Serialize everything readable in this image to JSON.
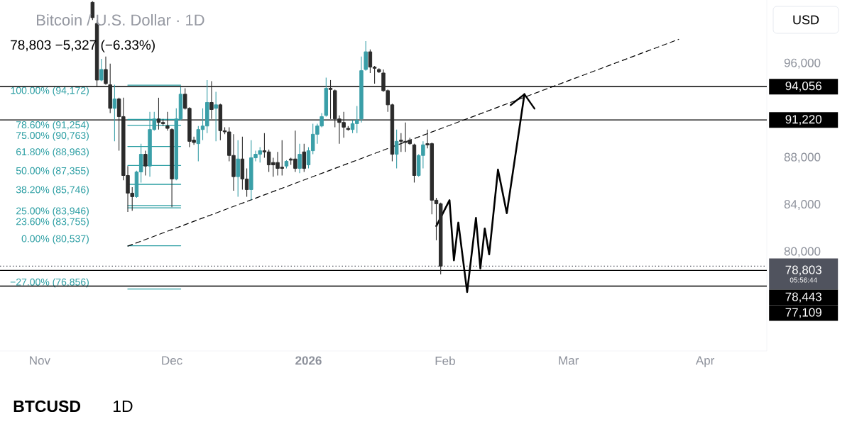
{
  "chart_data": {
    "type": "candlestick",
    "title": "Bitcoin / U.S. Dollar · 1D",
    "subtitle": "78,803 −5,327 (−6.33%)",
    "x": [
      "2025-11-13",
      "2025-11-14",
      "2025-11-15",
      "2025-11-16",
      "2025-11-17",
      "2025-11-18",
      "2025-11-19",
      "2025-11-20",
      "2025-11-21",
      "2025-11-22",
      "2025-11-23",
      "2025-11-24",
      "2025-11-25",
      "2025-11-26",
      "2025-11-27",
      "2025-11-28",
      "2025-11-29",
      "2025-11-30",
      "2025-12-01",
      "2025-12-02",
      "2025-12-03",
      "2025-12-04",
      "2025-12-05",
      "2025-12-06",
      "2025-12-07",
      "2025-12-08",
      "2025-12-09",
      "2025-12-10",
      "2025-12-11",
      "2025-12-12",
      "2025-12-13",
      "2025-12-14",
      "2025-12-15",
      "2025-12-16",
      "2025-12-17",
      "2025-12-18",
      "2025-12-19",
      "2025-12-20",
      "2025-12-21",
      "2025-12-22",
      "2025-12-23",
      "2025-12-24",
      "2025-12-25",
      "2025-12-26",
      "2025-12-27",
      "2025-12-28",
      "2025-12-29",
      "2025-12-30",
      "2025-12-31",
      "2026-01-01",
      "2026-01-02",
      "2026-01-03",
      "2026-01-04",
      "2026-01-05",
      "2026-01-06",
      "2026-01-07",
      "2026-01-08",
      "2026-01-09",
      "2026-01-10",
      "2026-01-11",
      "2026-01-12",
      "2026-01-13",
      "2026-01-14",
      "2026-01-15",
      "2026-01-16",
      "2026-01-17",
      "2026-01-18",
      "2026-01-19",
      "2026-01-20",
      "2026-01-21",
      "2026-01-22",
      "2026-01-23",
      "2026-01-24",
      "2026-01-25",
      "2026-01-26",
      "2026-01-27",
      "2026-01-28",
      "2026-01-29",
      "2026-01-30",
      "2026-01-31"
    ],
    "ohlc": [
      [
        101200,
        101300,
        99700,
        99900
      ],
      [
        99400,
        99700,
        94000,
        94600
      ],
      [
        94600,
        96400,
        94500,
        95500
      ],
      [
        95500,
        96600,
        94200,
        94300
      ],
      [
        94200,
        96000,
        91800,
        92200
      ],
      [
        92200,
        94200,
        89400,
        93000
      ],
      [
        93000,
        93100,
        88600,
        91500
      ],
      [
        91500,
        93100,
        86100,
        86500
      ],
      [
        86500,
        87300,
        83400,
        85000
      ],
      [
        85000,
        85500,
        83500,
        84700
      ],
      [
        84700,
        86900,
        84600,
        86800
      ],
      [
        86800,
        89200,
        85900,
        88300
      ],
      [
        88300,
        88600,
        86500,
        87300
      ],
      [
        87300,
        91900,
        86400,
        90400
      ],
      [
        90400,
        91900,
        90300,
        91300
      ],
      [
        91300,
        93100,
        90400,
        91000
      ],
      [
        91000,
        91300,
        90700,
        90900
      ],
      [
        90700,
        91900,
        90300,
        90500
      ],
      [
        90400,
        90500,
        83800,
        86200
      ],
      [
        86200,
        92200,
        86100,
        91300
      ],
      [
        91300,
        94000,
        91200,
        93400
      ],
      [
        93400,
        93900,
        92100,
        92200
      ],
      [
        92200,
        92300,
        88900,
        89400
      ],
      [
        89500,
        89800,
        89100,
        89300
      ],
      [
        89200,
        90700,
        87700,
        90400
      ],
      [
        90400,
        92200,
        89500,
        90700
      ],
      [
        90700,
        94600,
        90100,
        92700
      ],
      [
        92700,
        94500,
        91300,
        92100
      ],
      [
        92200,
        93600,
        89400,
        92500
      ],
      [
        92500,
        92600,
        89500,
        90300
      ],
      [
        90300,
        90600,
        90000,
        90200
      ],
      [
        90200,
        90600,
        87700,
        88200
      ],
      [
        88200,
        90000,
        85200,
        86400
      ],
      [
        86400,
        89500,
        84700,
        87900
      ],
      [
        87900,
        89800,
        85300,
        86200
      ],
      [
        86200,
        87100,
        84700,
        85300
      ],
      [
        85300,
        89500,
        84400,
        88000
      ],
      [
        88000,
        88600,
        87700,
        88300
      ],
      [
        88300,
        88900,
        87600,
        88600
      ],
      [
        88600,
        90100,
        88000,
        88500
      ],
      [
        88500,
        88700,
        86800,
        87400
      ],
      [
        87600,
        88000,
        86400,
        87400
      ],
      [
        87600,
        88500,
        86500,
        87100
      ],
      [
        87200,
        89500,
        86500,
        87100
      ],
      [
        87300,
        87800,
        87100,
        87700
      ],
      [
        87900,
        88000,
        87400,
        87800
      ],
      [
        87900,
        90300,
        86800,
        87100
      ],
      [
        87100,
        89200,
        86700,
        88300
      ],
      [
        88500,
        89200,
        86800,
        87100
      ],
      [
        87400,
        88900,
        87100,
        88600
      ],
      [
        88600,
        90900,
        88300,
        90000
      ],
      [
        90000,
        90900,
        89200,
        90700
      ],
      [
        90700,
        91800,
        90600,
        91500
      ],
      [
        91600,
        94800,
        91500,
        93900
      ],
      [
        93900,
        94600,
        91300,
        93800
      ],
      [
        93700,
        93800,
        90600,
        91300
      ],
      [
        91300,
        91600,
        89200,
        91000
      ],
      [
        91000,
        91900,
        89700,
        90600
      ],
      [
        90500,
        90700,
        90300,
        90400
      ],
      [
        90400,
        91200,
        90100,
        90900
      ],
      [
        90900,
        92400,
        90100,
        91200
      ],
      [
        91300,
        96600,
        91000,
        95400
      ],
      [
        95500,
        97900,
        95400,
        97000
      ],
      [
        97000,
        97200,
        95200,
        95700
      ],
      [
        95700,
        95800,
        94300,
        95600
      ],
      [
        95500,
        95600,
        95200,
        95300
      ],
      [
        95200,
        95500,
        93600,
        93700
      ],
      [
        93700,
        93800,
        91900,
        92500
      ],
      [
        92500,
        92600,
        87700,
        88300
      ],
      [
        88300,
        90400,
        87100,
        89400
      ],
      [
        89500,
        90100,
        88500,
        89400
      ],
      [
        89400,
        91000,
        88500,
        89300
      ],
      [
        89500,
        89700,
        89100,
        89200
      ],
      [
        89100,
        89200,
        85900,
        86500
      ],
      [
        86500,
        88300,
        86400,
        88200
      ],
      [
        88200,
        89400,
        87100,
        89100
      ],
      [
        89200,
        90400,
        88800,
        89100
      ],
      [
        89200,
        89300,
        83200,
        84400
      ],
      [
        84400,
        84600,
        81000,
        84100
      ],
      [
        84100,
        84200,
        78100,
        78800
      ]
    ],
    "colors": [
      "#2b2b2b",
      "#2b2b2b",
      "#3a9fa8",
      "#2b2b2b",
      "#2b2b2b",
      "#3a9fa8",
      "#2b2b2b",
      "#2b2b2b",
      "#2b2b2b",
      "#2b2b2b",
      "#3a9fa8",
      "#3a9fa8",
      "#2b2b2b",
      "#3a9fa8",
      "#3a9fa8",
      "#2b2b2b",
      "#2b2b2b",
      "#2b2b2b",
      "#2b2b2b",
      "#3a9fa8",
      "#3a9fa8",
      "#2b2b2b",
      "#2b2b2b",
      "#2b2b2b",
      "#3a9fa8",
      "#3a9fa8",
      "#3a9fa8",
      "#2b2b2b",
      "#3a9fa8",
      "#2b2b2b",
      "#2b2b2b",
      "#2b2b2b",
      "#2b2b2b",
      "#3a9fa8",
      "#2b2b2b",
      "#2b2b2b",
      "#3a9fa8",
      "#3a9fa8",
      "#3a9fa8",
      "#2b2b2b",
      "#2b2b2b",
      "#2b2b2b",
      "#2b2b2b",
      "#2b2b2b",
      "#3a9fa8",
      "#2b2b2b",
      "#2b2b2b",
      "#3a9fa8",
      "#2b2b2b",
      "#3a9fa8",
      "#3a9fa8",
      "#3a9fa8",
      "#3a9fa8",
      "#3a9fa8",
      "#2b2b2b",
      "#2b2b2b",
      "#2b2b2b",
      "#2b2b2b",
      "#2b2b2b",
      "#3a9fa8",
      "#3a9fa8",
      "#3a9fa8",
      "#3a9fa8",
      "#2b2b2b",
      "#2b2b2b",
      "#2b2b2b",
      "#2b2b2b",
      "#2b2b2b",
      "#2b2b2b",
      "#3a9fa8",
      "#2b2b2b",
      "#2b2b2b",
      "#2b2b2b",
      "#2b2b2b",
      "#3a9fa8",
      "#3a9fa8",
      "#2b2b2b",
      "#2b2b2b",
      "#2b2b2b",
      "#2b2b2b"
    ],
    "series": [
      {
        "type": "line",
        "color": "#2b9ea3",
        "x": [
          "2025-11-21",
          "2025-12-03"
        ],
        "values": [
          94172,
          94172
        ]
      },
      {
        "type": "line",
        "color": "#2b9ea3",
        "x": [
          "2025-11-21",
          "2025-12-03"
        ],
        "values": [
          91254,
          91254
        ]
      },
      {
        "type": "line",
        "color": "#2b9ea3",
        "x": [
          "2025-11-21",
          "2025-12-03"
        ],
        "values": [
          90763,
          90763
        ]
      },
      {
        "type": "line",
        "color": "#2b9ea3",
        "x": [
          "2025-11-21",
          "2025-12-03"
        ],
        "values": [
          88963,
          88963
        ]
      },
      {
        "type": "line",
        "color": "#2b9ea3",
        "x": [
          "2025-11-21",
          "2025-12-03"
        ],
        "values": [
          87355,
          87355
        ]
      },
      {
        "type": "line",
        "color": "#2b9ea3",
        "x": [
          "2025-11-21",
          "2025-12-03"
        ],
        "values": [
          85746,
          85746
        ]
      },
      {
        "type": "line",
        "color": "#2b9ea3",
        "x": [
          "2025-11-21",
          "2025-12-03"
        ],
        "values": [
          83946,
          83946
        ]
      },
      {
        "type": "line",
        "color": "#2b9ea3",
        "x": [
          "2025-11-21",
          "2025-12-03"
        ],
        "values": [
          83755,
          83755
        ]
      },
      {
        "type": "line",
        "color": "#2b9ea3",
        "x": [
          "2025-11-21",
          "2025-12-03"
        ],
        "values": [
          80537,
          80537
        ]
      },
      {
        "type": "line",
        "color": "#2b9ea3",
        "x": [
          "2025-11-21",
          "2025-12-03"
        ],
        "values": [
          76856,
          76856
        ]
      },
      {
        "type": "line",
        "color": "#000000",
        "line_style": "dashed",
        "x": [
          "2025-11-21",
          "2026-03-26"
        ],
        "values": [
          80500,
          98060
        ]
      },
      {
        "type": "line",
        "color": "#000000",
        "line_style": "solid",
        "x": [
          "2026-01-30",
          "2026-02-02",
          "2026-02-03",
          "2026-02-04",
          "2026-02-06",
          "2026-02-08",
          "2026-02-09",
          "2026-02-10",
          "2026-02-11",
          "2026-02-13",
          "2026-02-15",
          "2026-02-19"
        ],
        "values": [
          82200,
          84400,
          79300,
          82500,
          76600,
          82900,
          78600,
          82000,
          79800,
          87000,
          83300,
          93400
        ]
      }
    ],
    "ref_lines": [
      {
        "axis": "y",
        "value": 94056,
        "label": "94,056",
        "color": "#000000"
      },
      {
        "axis": "y",
        "value": 91220,
        "label": "91,220",
        "color": "#000000"
      },
      {
        "axis": "y",
        "value": 78443,
        "label": "78,443",
        "color": "#000000"
      },
      {
        "axis": "y",
        "value": 77109,
        "label": "77,109",
        "color": "#000000"
      },
      {
        "axis": "y",
        "value": 78803,
        "label": "78,803",
        "color": "#50535e",
        "line_style": "dotted"
      }
    ],
    "annotations": [
      "USD",
      "05:56:44",
      "BTCUSD",
      "1D",
      "100.00% (94,172)",
      "78.60% (91,254)",
      "75.00% (90,763)",
      "61.80% (88,963)",
      "50.00% (87,355)",
      "38.20% (85,746)",
      "25.00% (83,946)",
      "23.60% (83,755)",
      "0.00% (80,537)",
      "−27.00% (76,856)"
    ],
    "xlim": [
      "2025-10-23",
      "2026-04-15"
    ],
    "xticks": [
      {
        "value": "2025-11-01",
        "label": "Nov"
      },
      {
        "value": "2025-12-01",
        "label": "Dec"
      },
      {
        "value": "2026-01-01",
        "label": "2026"
      },
      {
        "value": "2026-02-01",
        "label": "Feb"
      },
      {
        "value": "2026-03-01",
        "label": "Mar"
      },
      {
        "value": "2026-04-01",
        "label": "Apr"
      }
    ],
    "ylim": [
      71600,
      101400
    ],
    "yticks": [
      {
        "value": 80000,
        "label": "80,000"
      },
      {
        "value": 84000,
        "label": "84,000"
      },
      {
        "value": 88000,
        "label": "88,000"
      },
      {
        "value": 96000,
        "label": "96,000"
      }
    ]
  }
}
